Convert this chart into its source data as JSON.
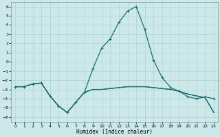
{
  "xlabel": "Humidex (Indice chaleur)",
  "bg_color": "#cce8e8",
  "line_color": "#1a6e6e",
  "grid_color": "#b0d4d4",
  "xlim": [
    -0.5,
    23.5
  ],
  "ylim": [
    -6.5,
    6.5
  ],
  "yticks": [
    -6,
    -5,
    -4,
    -3,
    -2,
    -1,
    0,
    1,
    2,
    3,
    4,
    5,
    6
  ],
  "xticks": [
    0,
    1,
    2,
    3,
    4,
    5,
    6,
    7,
    8,
    9,
    10,
    11,
    12,
    13,
    14,
    15,
    16,
    17,
    18,
    19,
    20,
    21,
    22,
    23
  ],
  "line1_x": [
    0,
    1,
    2,
    3,
    4,
    5,
    6,
    7,
    8,
    9,
    10,
    11,
    12,
    13,
    14,
    15,
    16,
    17,
    18,
    19,
    20,
    21,
    22,
    23
  ],
  "line1_y": [
    -2.7,
    -2.7,
    -2.4,
    -2.3,
    -3.7,
    -4.8,
    -5.5,
    -4.4,
    -3.3,
    -3.0,
    -3.0,
    -2.9,
    -2.8,
    -2.7,
    -2.7,
    -2.7,
    -2.8,
    -2.9,
    -3.0,
    -3.2,
    -3.5,
    -3.7,
    -3.9,
    -5.5
  ],
  "line2_x": [
    0,
    1,
    2,
    3,
    4,
    5,
    6,
    7,
    8,
    9,
    10,
    11,
    12,
    13,
    14,
    15,
    16,
    17,
    18,
    19,
    20,
    21,
    22,
    23
  ],
  "line2_y": [
    -2.7,
    -2.7,
    -2.4,
    -2.3,
    -3.7,
    -4.8,
    -5.5,
    -4.4,
    -3.3,
    -0.7,
    1.5,
    2.5,
    4.3,
    5.5,
    6.0,
    3.5,
    0.2,
    -1.7,
    -2.8,
    -3.2,
    -3.8,
    -4.0,
    -3.8,
    -4.0
  ],
  "line3_x": [
    0,
    1,
    2,
    3,
    4,
    5,
    6,
    7,
    8,
    9,
    10,
    11,
    12,
    13,
    14,
    15,
    16,
    17,
    18,
    19,
    20,
    21,
    22,
    23
  ],
  "line3_y": [
    -2.7,
    -2.7,
    -2.4,
    -2.3,
    -3.7,
    -4.8,
    -5.5,
    -4.4,
    -3.3,
    -3.0,
    -3.0,
    -2.9,
    -2.8,
    -2.7,
    -2.7,
    -2.7,
    -2.8,
    -2.9,
    -3.0,
    -3.2,
    -3.5,
    -3.7,
    -3.9,
    -5.5
  ]
}
